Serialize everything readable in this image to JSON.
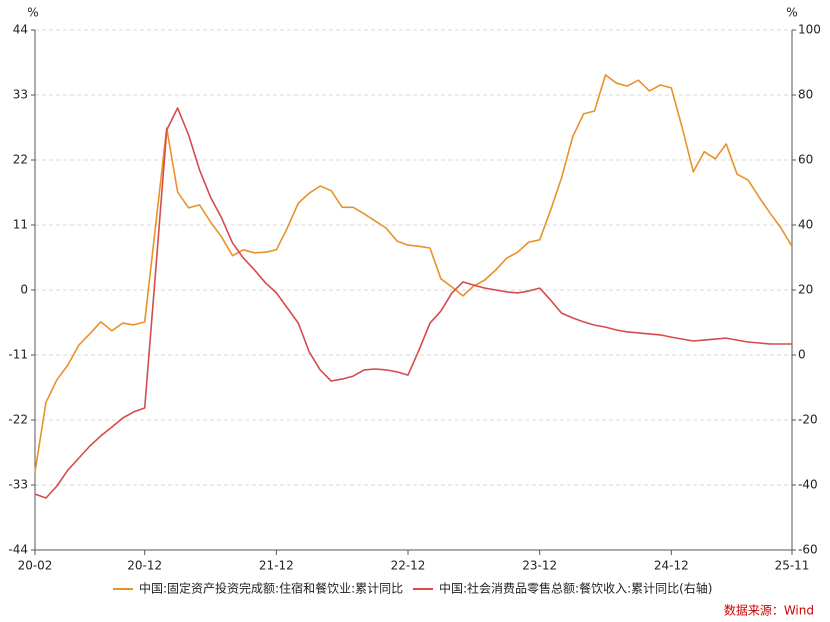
{
  "chart_data": {
    "type": "line",
    "y_unit": "%",
    "y2_unit": "%",
    "categories": [
      "20-02",
      null,
      null,
      null,
      null,
      null,
      null,
      null,
      null,
      null,
      "20-12",
      null,
      null,
      null,
      null,
      null,
      null,
      null,
      null,
      null,
      null,
      null,
      "21-12",
      null,
      null,
      null,
      null,
      null,
      null,
      null,
      null,
      null,
      null,
      null,
      "22-12",
      null,
      null,
      null,
      null,
      null,
      null,
      null,
      null,
      null,
      null,
      null,
      "23-12",
      null,
      null,
      null,
      null,
      null,
      null,
      null,
      null,
      null,
      null,
      null,
      "24-12",
      null,
      null,
      null,
      null,
      null,
      null,
      null,
      null,
      null,
      null,
      "25-11"
    ],
    "series": [
      {
        "name": "中国:固定资产投资完成额:住宿和餐饮业:累计同比",
        "color": "#e8922a",
        "axis": "y",
        "values": [
          -30.8,
          -19,
          -15.2,
          -12.7,
          -9.3,
          -7.4,
          -5.4,
          -6.9,
          -5.6,
          -5.9,
          -5.4,
          11,
          27.4,
          16.6,
          13.9,
          14.4,
          11.5,
          9.0,
          5.8,
          6.8,
          6.3,
          6.4,
          6.8,
          10.5,
          14.7,
          16.4,
          17.6,
          16.8,
          14.0,
          14.0,
          12.9,
          11.7,
          10.5,
          8.3,
          7.6,
          7.4,
          7.1,
          1.9,
          0.5,
          -1.0,
          0.7,
          1.7,
          3.4,
          5.4,
          6.4,
          8.1,
          8.5,
          13.5,
          19,
          25.9,
          29.8,
          30.3,
          36.4,
          35.0,
          34.5,
          35.5,
          33.7,
          34.7,
          34.2,
          27.4,
          20,
          23.4,
          22.2,
          24.7,
          19.6,
          18.6,
          15.7,
          13,
          10.5,
          7.4
        ]
      },
      {
        "name": "中国:社会消费品零售总额:餐饮收入:累计同比(右轴)",
        "color": "#d64b4b",
        "axis": "y2",
        "values": [
          -42.8,
          -44,
          -40.3,
          -35.4,
          -31.7,
          -28,
          -24.9,
          -22.2,
          -19.4,
          -17.5,
          -16.3,
          26,
          69.2,
          76,
          67.7,
          56.9,
          48.6,
          42.2,
          34.5,
          29.8,
          26.2,
          22.2,
          19.1,
          14.5,
          9.8,
          0.9,
          -4.6,
          -8,
          -7.4,
          -6.5,
          -4.6,
          -4.3,
          -4.6,
          -5.2,
          -6.2,
          1.5,
          9.8,
          13.5,
          19.1,
          22.5,
          21.5,
          20.6,
          20,
          19.4,
          19.1,
          19.7,
          20.6,
          16.9,
          12.9,
          11.4,
          10.2,
          9.2,
          8.6,
          7.7,
          7.1,
          6.8,
          6.5,
          6.2,
          5.5,
          4.9,
          4.3,
          4.6,
          4.9,
          5.2,
          4.6,
          4,
          3.7,
          3.4,
          3.4,
          3.4
        ]
      }
    ],
    "ylim": [
      -44,
      44
    ],
    "yticks": [
      -44,
      -33,
      -22,
      -11,
      0,
      11,
      22,
      33,
      44
    ],
    "y2lim": [
      -60,
      100
    ],
    "y2ticks": [
      -60,
      -40,
      -20,
      0,
      20,
      40,
      60,
      80,
      100
    ],
    "grid": true,
    "legend": "bottom",
    "source": "数据来源：Wind",
    "source_color": "#cc0000"
  }
}
